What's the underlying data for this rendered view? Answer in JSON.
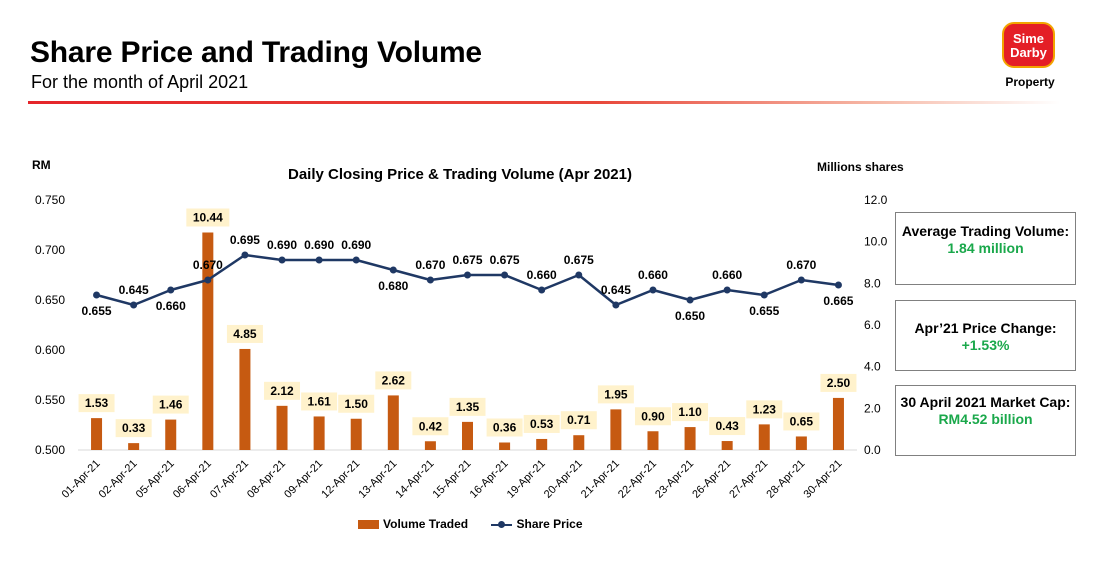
{
  "header": {
    "title": "Share Price and Trading Volume",
    "subtitle": "For the month of April 2021"
  },
  "logo": {
    "line1": "Sime",
    "line2": "Darby",
    "sub": "Property",
    "colors": {
      "tile": "#e41e26",
      "border": "#f2a400"
    }
  },
  "kpis": [
    {
      "label": "Average Trading Volume:",
      "value": "1.84 million"
    },
    {
      "label": "Apr’21 Price Change:",
      "value": "+1.53%"
    },
    {
      "label": "30 April 2021 Market Cap:",
      "value": "RM4.52 billion"
    }
  ],
  "chart_data": {
    "type": "bar+line",
    "title": "Daily Closing Price & Trading Volume (Apr 2021)",
    "y_left_label": "RM",
    "y_right_label": "Millions shares",
    "categories": [
      "01-Apr-21",
      "02-Apr-21",
      "05-Apr-21",
      "06-Apr-21",
      "07-Apr-21",
      "08-Apr-21",
      "09-Apr-21",
      "12-Apr-21",
      "13-Apr-21",
      "14-Apr-21",
      "15-Apr-21",
      "16-Apr-21",
      "19-Apr-21",
      "20-Apr-21",
      "21-Apr-21",
      "22-Apr-21",
      "23-Apr-21",
      "26-Apr-21",
      "27-Apr-21",
      "28-Apr-21",
      "30-Apr-21"
    ],
    "volume": {
      "name": "Volume Traded",
      "axis": "right",
      "values": [
        1.53,
        0.33,
        1.46,
        10.44,
        4.85,
        2.12,
        1.61,
        1.5,
        2.62,
        0.42,
        1.35,
        0.36,
        0.53,
        0.71,
        1.95,
        0.9,
        1.1,
        0.43,
        1.23,
        0.65,
        2.5
      ],
      "labels": [
        "1.53",
        "0.33",
        "1.46",
        "10.44",
        "4.85",
        "2.12",
        "1.61",
        "1.50",
        "2.62",
        "0.42",
        "1.35",
        "0.36",
        "0.53",
        "0.71",
        "1.95",
        "0.90",
        "1.10",
        "0.43",
        "1.23",
        "0.65",
        "2.50"
      ],
      "color": "#c65a11",
      "label_bg": "#fff2cc"
    },
    "price": {
      "name": "Share Price",
      "axis": "left",
      "values": [
        0.655,
        0.645,
        0.66,
        0.67,
        0.695,
        0.69,
        0.69,
        0.69,
        0.68,
        0.67,
        0.675,
        0.675,
        0.66,
        0.675,
        0.645,
        0.66,
        0.65,
        0.66,
        0.655,
        0.67,
        0.665
      ],
      "labels": [
        "0.655",
        "0.645",
        "0.660",
        "0.670",
        "0.695",
        "0.690",
        "0.690",
        "0.690",
        "0.680",
        "0.670",
        "0.675",
        "0.675",
        "0.660",
        "0.675",
        "0.645",
        "0.660",
        "0.650",
        "0.660",
        "0.655",
        "0.670",
        "0.665"
      ],
      "label_pos": [
        "below",
        "above",
        "below",
        "above",
        "above",
        "above",
        "above",
        "above",
        "below",
        "above",
        "above",
        "above",
        "above",
        "above",
        "above",
        "above",
        "below",
        "above",
        "below",
        "above",
        "below"
      ],
      "color": "#1f3864"
    },
    "y_left": {
      "min": 0.5,
      "max": 0.75,
      "ticks": [
        "0.500",
        "0.550",
        "0.600",
        "0.650",
        "0.700",
        "0.750"
      ]
    },
    "y_right": {
      "min": 0,
      "max": 12,
      "ticks": [
        "0.0",
        "2.0",
        "4.0",
        "6.0",
        "8.0",
        "10.0",
        "12.0"
      ]
    },
    "grid": false,
    "legend_position": "bottom"
  }
}
